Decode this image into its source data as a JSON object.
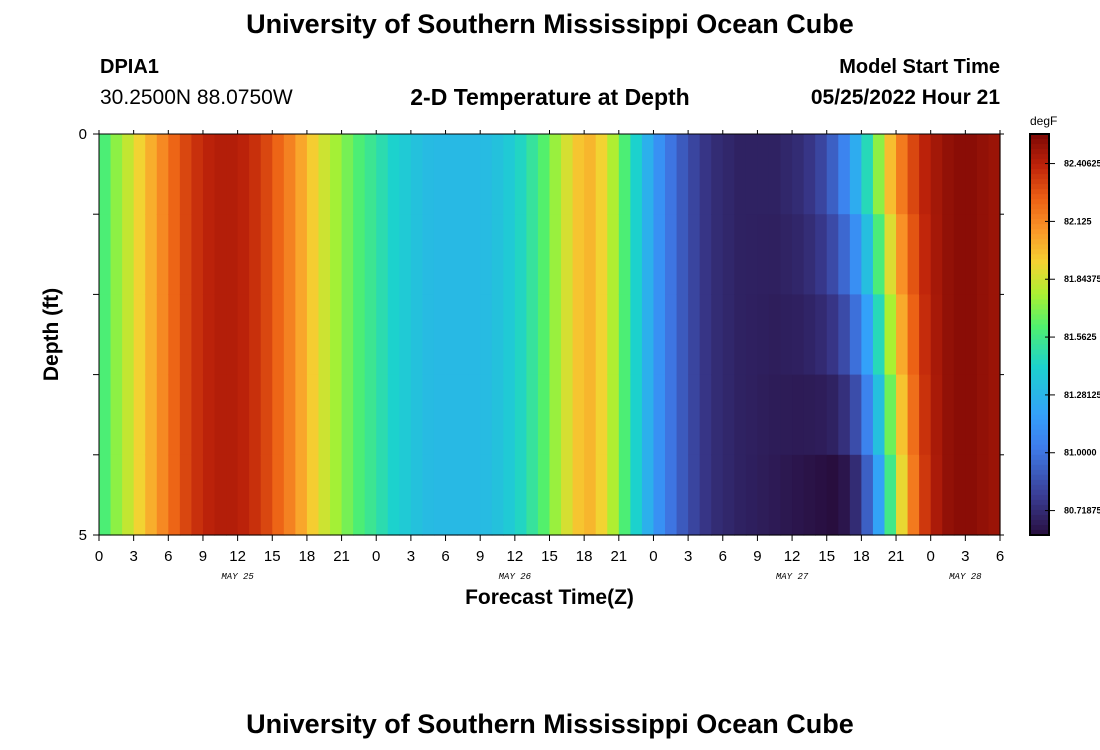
{
  "header": {
    "title": "University of Southern Mississippi Ocean Cube",
    "station": "DPIA1",
    "location": "30.2500N  88.0750W",
    "subtitle": "2-D Temperature at Depth",
    "model_start_label": "Model Start Time",
    "model_start_value": "05/25/2022 Hour 21",
    "footer_title": "University of Southern Mississippi Ocean Cube"
  },
  "chart_data": {
    "type": "heatmap",
    "title": "2-D Temperature at Depth",
    "xlabel": "Forecast Time(Z)",
    "ylabel": "Depth (ft)",
    "x_range_hours": [
      0,
      78
    ],
    "x_ticks": [
      "0",
      "3",
      "6",
      "9",
      "12",
      "15",
      "18",
      "21",
      "0",
      "3",
      "6",
      "9",
      "12",
      "15",
      "18",
      "21",
      "0",
      "3",
      "6",
      "9",
      "12",
      "15",
      "18",
      "21",
      "0",
      "3",
      "6"
    ],
    "day_labels": [
      {
        "text": "MAY 25",
        "hour": 12
      },
      {
        "text": "MAY 26",
        "hour": 36
      },
      {
        "text": "MAY 27",
        "hour": 60
      },
      {
        "text": "MAY 28",
        "hour": 75
      }
    ],
    "y_ticks": [
      "0",
      "5"
    ],
    "ylim": [
      0,
      5
    ],
    "colorbar": {
      "unit": "degF",
      "min": 80.6,
      "max": 82.55,
      "ticks": [
        "82.40625",
        "82.125",
        "81.84375",
        "81.5625",
        "81.28125",
        "81.0000",
        "80.71875"
      ],
      "tick_values": [
        82.40625,
        82.125,
        81.84375,
        81.5625,
        81.28125,
        81.0,
        80.71875
      ]
    },
    "time_hours": [
      0,
      1,
      2,
      3,
      4,
      5,
      6,
      7,
      8,
      9,
      10,
      11,
      12,
      13,
      14,
      15,
      16,
      17,
      18,
      19,
      20,
      21,
      22,
      23,
      24,
      25,
      26,
      27,
      28,
      29,
      30,
      31,
      32,
      33,
      34,
      35,
      36,
      37,
      38,
      39,
      40,
      41,
      42,
      43,
      44,
      45,
      46,
      47,
      48,
      49,
      50,
      51,
      52,
      53,
      54,
      55,
      56,
      57,
      58,
      59,
      60,
      61,
      62,
      63,
      64,
      65,
      66,
      67,
      68,
      69,
      70,
      71,
      72,
      73,
      74,
      75,
      76,
      77
    ],
    "temperature_surface_degF": [
      81.6,
      81.72,
      81.82,
      81.92,
      82.02,
      82.12,
      82.22,
      82.3,
      82.36,
      82.4,
      82.42,
      82.42,
      82.4,
      82.36,
      82.3,
      82.22,
      82.14,
      82.04,
      81.94,
      81.84,
      81.76,
      81.68,
      81.6,
      81.54,
      81.48,
      81.42,
      81.38,
      81.34,
      81.31,
      81.3,
      81.3,
      81.3,
      81.3,
      81.31,
      81.34,
      81.38,
      81.44,
      81.52,
      81.62,
      81.74,
      81.86,
      81.96,
      82.0,
      81.92,
      81.78,
      81.6,
      81.42,
      81.26,
      81.12,
      81.0,
      80.9,
      80.82,
      80.76,
      80.72,
      80.7,
      80.68,
      80.68,
      80.68,
      80.68,
      80.7,
      80.72,
      80.76,
      80.82,
      80.92,
      81.06,
      81.24,
      81.46,
      81.72,
      81.98,
      82.16,
      82.3,
      82.4,
      82.46,
      82.5,
      82.52,
      82.52,
      82.5,
      82.48
    ],
    "temperature_bottom_degF": [
      81.6,
      81.72,
      81.82,
      81.92,
      82.02,
      82.12,
      82.22,
      82.3,
      82.36,
      82.4,
      82.42,
      82.42,
      82.4,
      82.36,
      82.3,
      82.22,
      82.14,
      82.04,
      81.94,
      81.84,
      81.76,
      81.68,
      81.6,
      81.54,
      81.48,
      81.42,
      81.38,
      81.34,
      81.31,
      81.3,
      81.3,
      81.3,
      81.3,
      81.31,
      81.34,
      81.38,
      81.44,
      81.52,
      81.62,
      81.74,
      81.86,
      81.96,
      82.0,
      81.92,
      81.78,
      81.6,
      81.42,
      81.26,
      81.12,
      81.0,
      80.9,
      80.82,
      80.76,
      80.72,
      80.7,
      80.68,
      80.67,
      80.66,
      80.65,
      80.64,
      80.63,
      80.62,
      80.61,
      80.6,
      80.63,
      80.72,
      80.92,
      81.2,
      81.56,
      81.9,
      82.16,
      82.34,
      82.44,
      82.5,
      82.52,
      82.52,
      82.5,
      82.48
    ],
    "depth_levels": 5
  }
}
